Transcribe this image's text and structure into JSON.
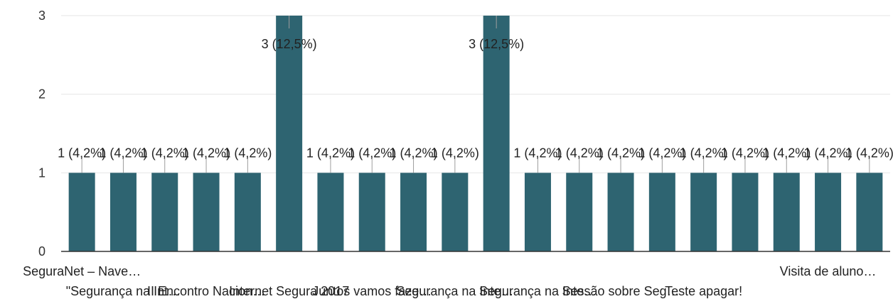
{
  "chart_data": {
    "type": "bar",
    "categories": [
      "SeguraNet – Nave…",
      "\"Segurança na Int…",
      "",
      "II Encontro Nacion…",
      "",
      "Internet Segura 2017",
      "",
      "Juntos vamos faze…",
      "",
      "Segurança na Inte…",
      "",
      "Segurança na Inte…",
      "",
      "Sessão sobre Seg…",
      "",
      "Teste apagar!",
      "",
      "",
      "Visita de aluno…",
      ""
    ],
    "values": [
      1,
      1,
      1,
      1,
      1,
      3,
      1,
      1,
      1,
      1,
      3,
      1,
      1,
      1,
      1,
      1,
      1,
      1,
      1,
      1
    ],
    "data_labels": [
      "1 (4,2%)",
      "1 (4,2%)",
      "1 (4,2%)",
      "1 (4,2%)",
      "1 (4,2%)",
      "3 (12,5%)",
      "1 (4,2%)",
      "1 (4,2%)",
      "1 (4,2%)",
      "1 (4,2%)",
      "3 (12,5%)",
      "1 (4,2%)",
      "1 (4,2%)",
      "1 (4,2%)",
      "1 (4,2%)",
      "1 (4,2%)",
      "1 (4,2%)",
      "1 (4,2%)",
      "1 (4,2%)",
      "1 (4,2%)"
    ],
    "yticks": [
      "0",
      "1",
      "2",
      "3"
    ],
    "ylim": [
      0,
      3
    ],
    "grid": true,
    "bar_color": "#2e6471",
    "title": "",
    "xlabel": "",
    "ylabel": ""
  }
}
